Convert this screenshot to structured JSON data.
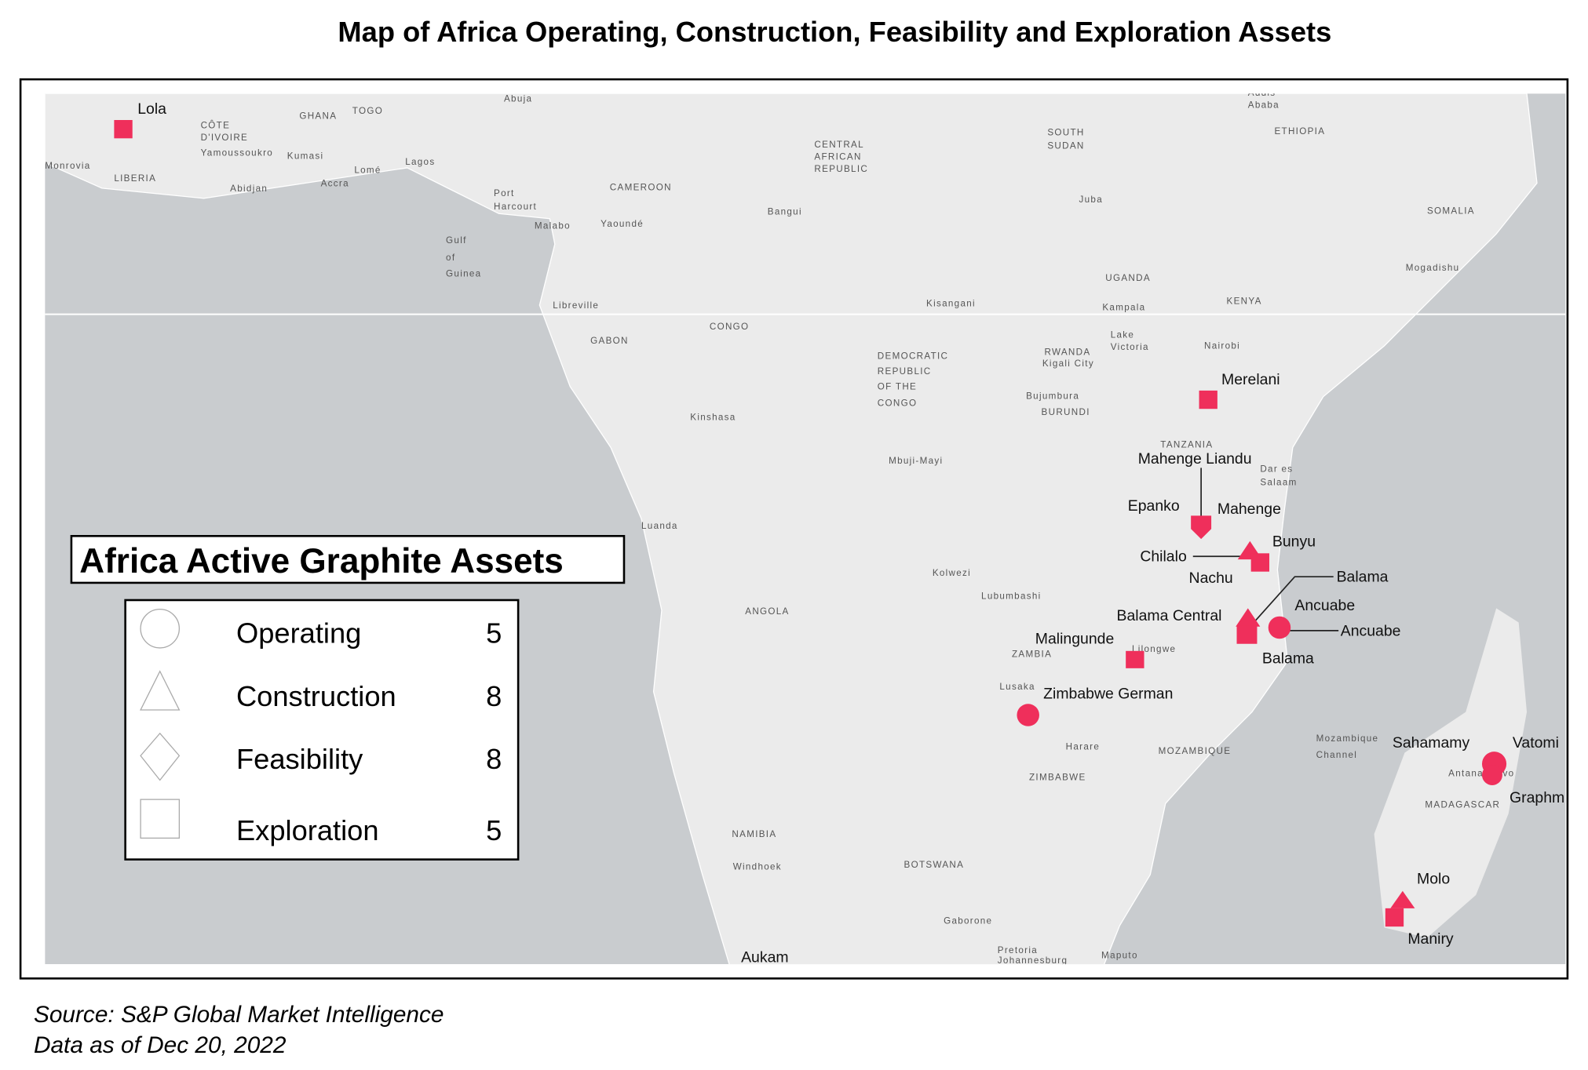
{
  "title": "Map of Africa Operating, Construction, Feasibility and Exploration Assets",
  "legend": {
    "title": "Africa Active Graphite Assets",
    "items": [
      {
        "label": "Operating",
        "count": 5
      },
      {
        "label": "Construction",
        "count": 8
      },
      {
        "label": "Feasibility",
        "count": 8
      },
      {
        "label": "Exploration",
        "count": 5
      }
    ]
  },
  "assets": [
    "Lola",
    "Merelani",
    "Mahenge Liandu",
    "Epanko",
    "Mahenge",
    "Bunyu",
    "Chilalo",
    "Nachu",
    "Balama",
    "Ancuabe",
    "Ancuabe",
    "Balama Central",
    "Balama",
    "Malingunde",
    "Zimbabwe German",
    "Sahamamy",
    "Vatomi",
    "Graphm",
    "Molo",
    "Maniry",
    "Aukam"
  ],
  "places": [
    "GHANA",
    "TOGO",
    "CÔTE",
    "D'IVOIRE",
    "Yamoussoukro",
    "Kumasi",
    "Monrovia",
    "LIBERIA",
    "Abidjan",
    "Accra",
    "Lomé",
    "Lagos",
    "Abuja",
    "Port",
    "Harcourt",
    "Malabo",
    "Yaoundé",
    "CAMEROON",
    "Gulf",
    "of",
    "Guinea",
    "CENTRAL",
    "AFRICAN",
    "REPUBLIC",
    "Bangui",
    "SOUTH",
    "SUDAN",
    "Juba",
    "Addis",
    "Ababa",
    "ETHIOPIA",
    "SOMALIA",
    "Mogadishu",
    "UGANDA",
    "Kampala",
    "KENYA",
    "Nairobi",
    "Lake",
    "Victoria",
    "Libreville",
    "GABON",
    "CONGO",
    "Kisangani",
    "DEMOCRATIC",
    "REPUBLIC",
    "OF THE",
    "CONGO",
    "RWANDA",
    "Kigali City",
    "Bujumbura",
    "BURUNDI",
    "TANZANIA",
    "Dar es",
    "Salaam",
    "Kinshasa",
    "Mbuji-Mayi",
    "Luanda",
    "ANGOLA",
    "Kolwezi",
    "Lubumbashi",
    "ZAMBIA",
    "Lilongwe",
    "Lusaka",
    "Harare",
    "ZIMBABWE",
    "MOZAMBIQUE",
    "Mozambique",
    "Channel",
    "Antananarivo",
    "MADAGASCAR",
    "NAMIBIA",
    "Windhoek",
    "BOTSWANA",
    "Gaborone",
    "Pretoria",
    "Johannesburg",
    "Maputo"
  ],
  "source": [
    "Source: S&P Global Market Intelligence",
    "Data as of Dec 20, 2022"
  ]
}
